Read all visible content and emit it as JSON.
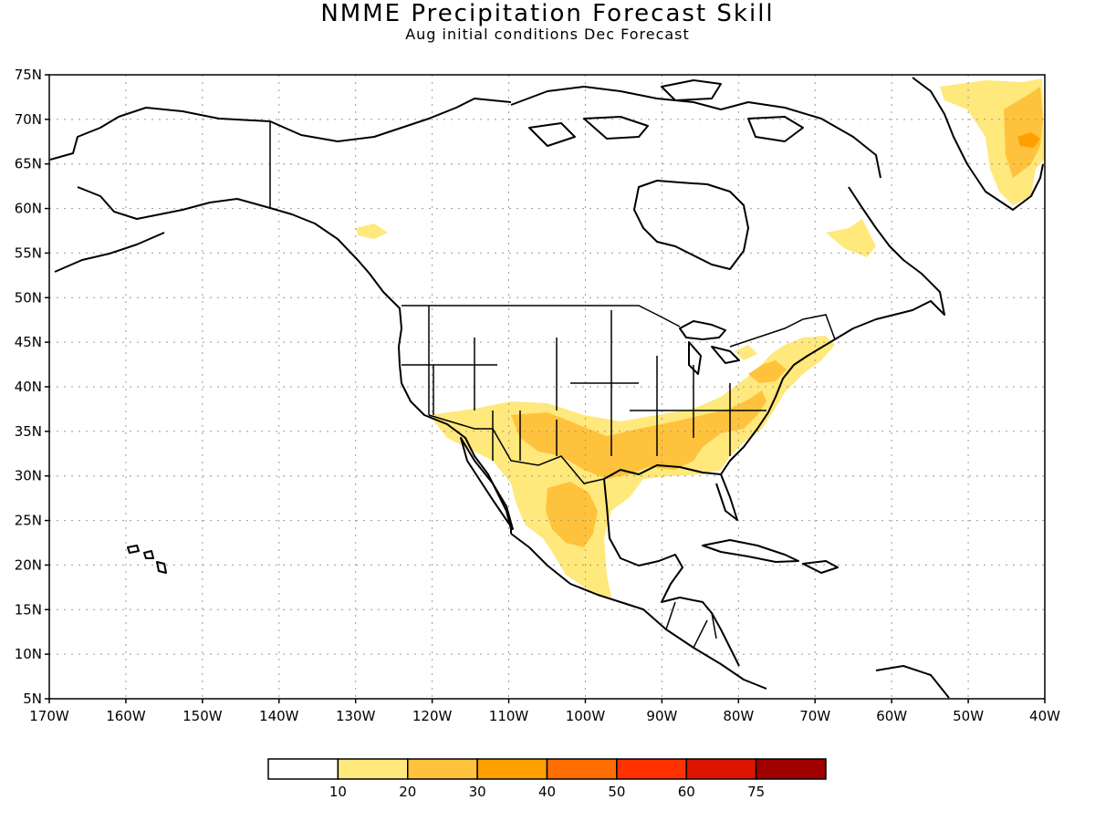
{
  "title": "NMME Precipitation Forecast Skill",
  "subtitle": "Aug initial conditions  Dec Forecast",
  "map": {
    "extent": {
      "lon": [
        -170,
        -40
      ],
      "lat": [
        5,
        75
      ]
    },
    "lat_labels": [
      "75N",
      "70N",
      "65N",
      "60N",
      "55N",
      "50N",
      "45N",
      "40N",
      "35N",
      "30N",
      "25N",
      "20N",
      "15N",
      "10N",
      "5N"
    ],
    "lon_labels": [
      "170W",
      "160W",
      "150W",
      "140W",
      "130W",
      "120W",
      "110W",
      "100W",
      "90W",
      "80W",
      "70W",
      "60W",
      "50W",
      "40W"
    ],
    "gridlines": "dotted"
  },
  "colorbar": {
    "colors": [
      "#ffffff",
      "#ffe87c",
      "#ffc23c",
      "#ffa000",
      "#ff6e00",
      "#ff3200",
      "#dc1400",
      "#a00000"
    ],
    "labels": [
      "10",
      "20",
      "30",
      "40",
      "50",
      "60",
      "75"
    ]
  },
  "regions_shaded": [
    {
      "area": "Southwestern US and northern Mexico",
      "level": "10-20"
    },
    {
      "area": "Texas and southern Plains",
      "level": "20-30"
    },
    {
      "area": "Gulf Coast and Southeast US",
      "level": "20-30"
    },
    {
      "area": "Central Mexico",
      "level": "10-30"
    },
    {
      "area": "Mid-Atlantic and New England",
      "level": "10-30"
    },
    {
      "area": "Labrador",
      "level": "10-20"
    },
    {
      "area": "British Columbia coast",
      "level": "10-20"
    },
    {
      "area": "Southeast Greenland",
      "level": "10-40"
    }
  ]
}
